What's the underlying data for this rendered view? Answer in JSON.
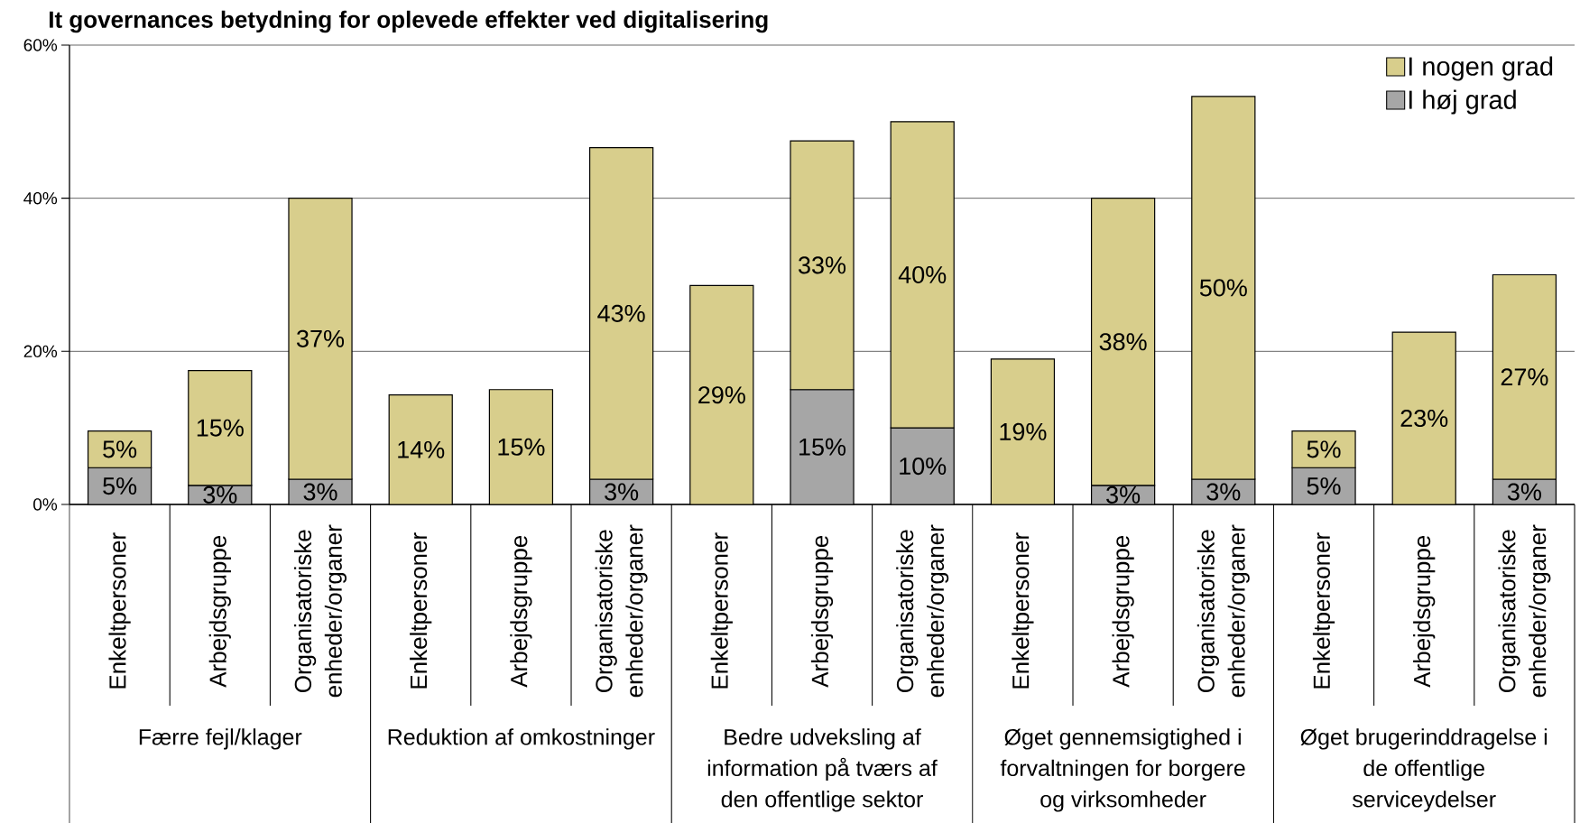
{
  "chart_data": {
    "type": "bar",
    "title": "It governances betydning for oplevede effekter ved digitalisering",
    "categories": [
      "Enkeltpersoner",
      "Arbejdsgruppe",
      "Organisatoriske enheder/organer",
      "Enkeltpersoner",
      "Arbejdsgruppe",
      "Organisatoriske enheder/organer",
      "Enkeltpersoner",
      "Arbejdsgruppe",
      "Organisatoriske enheder/organer",
      "Enkeltpersoner",
      "Arbejdsgruppe",
      "Organisatoriske enheder/organer",
      "Enkeltpersoner",
      "Arbejdsgruppe",
      "Organisatoriske enheder/organer"
    ],
    "series": [
      {
        "name": "I høj grad",
        "color": "#a6a6a6",
        "values": [
          4.8,
          2.5,
          3.3,
          null,
          null,
          3.3,
          null,
          15,
          10,
          null,
          2.5,
          3.3,
          4.8,
          null,
          3.3
        ],
        "value_labels": [
          "5%",
          "3%",
          "3%",
          null,
          null,
          "3%",
          null,
          "15%",
          "10%",
          null,
          "3%",
          "3%",
          "5%",
          null,
          "3%"
        ]
      },
      {
        "name": "I nogen grad",
        "color": "#d8ce8c",
        "values": [
          4.8,
          15,
          36.7,
          14.3,
          15,
          43.3,
          28.6,
          32.5,
          40,
          19,
          37.5,
          50,
          4.8,
          22.5,
          26.7
        ],
        "value_labels": [
          "5%",
          "15%",
          "37%",
          "14%",
          "15%",
          "43%",
          "29%",
          "33%",
          "40%",
          "19%",
          "38%",
          "50%",
          "5%",
          "23%",
          "27%"
        ]
      }
    ],
    "stacked": true,
    "ylim": [
      0,
      60
    ],
    "yticks": [
      {
        "value": 0,
        "label": "0%"
      },
      {
        "value": 20,
        "label": "20%"
      },
      {
        "value": 40,
        "label": "40%"
      },
      {
        "value": 60,
        "label": "60%"
      }
    ],
    "grid": "y",
    "legend": "top right",
    "annotations": [
      "Færre fejl/klager",
      "Reduktion af omkostninger",
      "Bedre udveksling af information på tværs af den offentlige sektor",
      "Øget gennemsigtighed i forvaltningen for borgere og virksomheder",
      "Øget brugerinddragelse i de offentlige serviceydelser"
    ]
  }
}
